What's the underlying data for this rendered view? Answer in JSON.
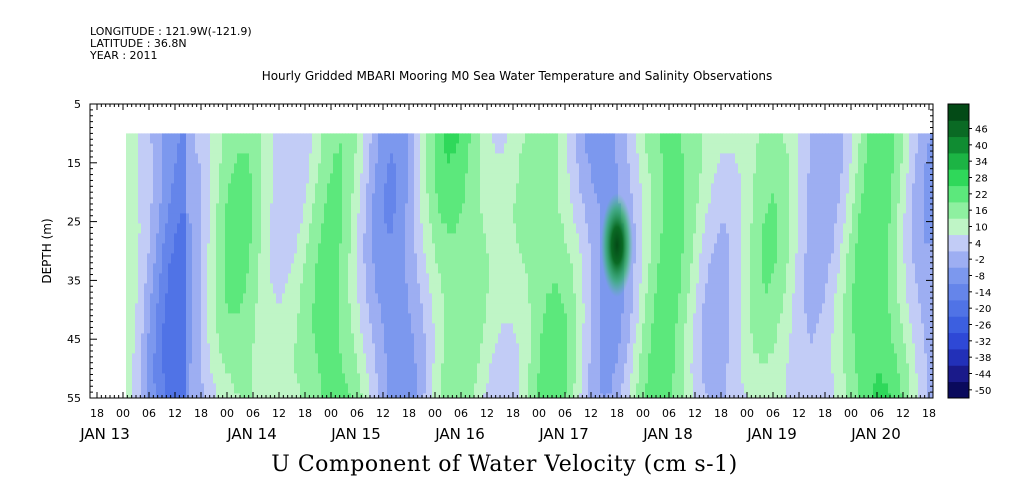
{
  "header": {
    "longitude": "LONGITUDE : 121.9W(-121.9)",
    "latitude": "LATITUDE : 36.8N",
    "year": "YEAR : 2011"
  },
  "title": "Hourly Gridded MBARI Mooring M0 Sea Water Temperature and Salinity Observations",
  "bottom_title": "U Component of Water Velocity (cm s-1)",
  "chart_data": {
    "type": "heatmap",
    "title": "Hourly Gridded MBARI Mooring M0 Sea Water Temperature and Salinity Observations",
    "xlabel": "",
    "ylabel": "DEPTH (m)",
    "variable": "U Component of Water Velocity (cm s-1)",
    "x_axis": {
      "start_hour_label": "18",
      "hour_ticks": [
        "18",
        "00",
        "06",
        "12",
        "18",
        "00",
        "06",
        "12",
        "18",
        "00",
        "06",
        "12",
        "18",
        "00",
        "06",
        "12",
        "18",
        "00",
        "06",
        "12",
        "18",
        "00",
        "06",
        "12",
        "18",
        "00",
        "06",
        "12",
        "18",
        "00",
        "06",
        "12",
        "18"
      ],
      "day_labels": [
        "JAN 13",
        "JAN 14",
        "JAN 15",
        "JAN 16",
        "JAN 17",
        "JAN 18",
        "JAN 19",
        "JAN 20"
      ]
    },
    "y_axis": {
      "ticks": [
        5,
        15,
        25,
        35,
        45,
        55
      ],
      "ylim": [
        55,
        5
      ],
      "data_range": [
        10,
        55
      ]
    },
    "colorbar": {
      "levels": [
        -50,
        -44,
        -38,
        -32,
        -26,
        -20,
        -14,
        -8,
        -2,
        4,
        10,
        16,
        22,
        28,
        34,
        40,
        46
      ],
      "colors": [
        "#0a0a5c",
        "#1a1a8a",
        "#2230b8",
        "#2e48d6",
        "#3c5fe0",
        "#5073e6",
        "#6585ea",
        "#7c98ee",
        "#9daef2",
        "#c2ccf6",
        "#bff5c6",
        "#8ef0a0",
        "#5ce87c",
        "#2fd85a",
        "#1cb444",
        "#108c32",
        "#0a6a24",
        "#034a16"
      ]
    },
    "values_desc": "U velocity field from JAN 13 18h to JAN 20 18h, depth 10-55 m; alternating bands of negative (blue, about -2 to -20) and positive (green, about 4 to 28) flow, with a strong positive core (about 40-46) near JAN 18 18h at 25-35 m depth."
  }
}
